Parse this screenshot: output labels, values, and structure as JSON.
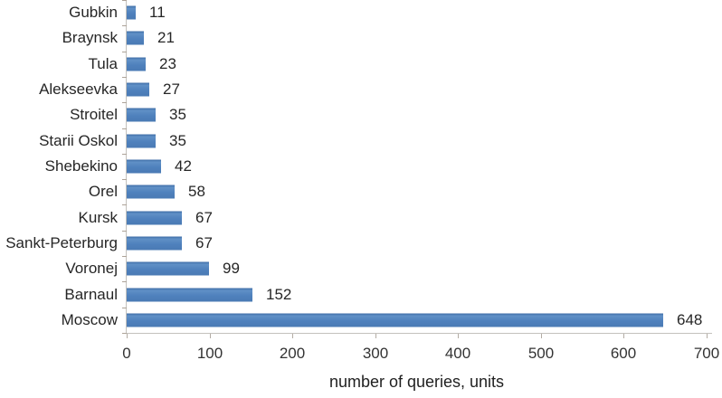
{
  "chart_data": {
    "type": "bar",
    "orientation": "horizontal",
    "categories": [
      "Gubkin",
      "Braynsk",
      "Tula",
      "Alekseevka",
      "Stroitel",
      "Starii Oskol",
      "Shebekino",
      "Orel",
      "Kursk",
      "Sankt-Peterburg",
      "Voronej",
      "Barnaul",
      "Moscow"
    ],
    "values": [
      11,
      21,
      23,
      27,
      35,
      35,
      42,
      58,
      67,
      67,
      99,
      152,
      648
    ],
    "title": "",
    "xlabel": "number of queries, units",
    "ylabel": "",
    "xlim": [
      0,
      700
    ],
    "xticks": [
      0,
      100,
      200,
      300,
      400,
      500,
      600,
      700
    ],
    "grid": false,
    "legend": false,
    "data_labels": true,
    "colors": {
      "bar": "#4f81bd",
      "axis_line": "#c3c1bd",
      "tick_mark": "#b3aca4",
      "text": "#262626"
    }
  }
}
